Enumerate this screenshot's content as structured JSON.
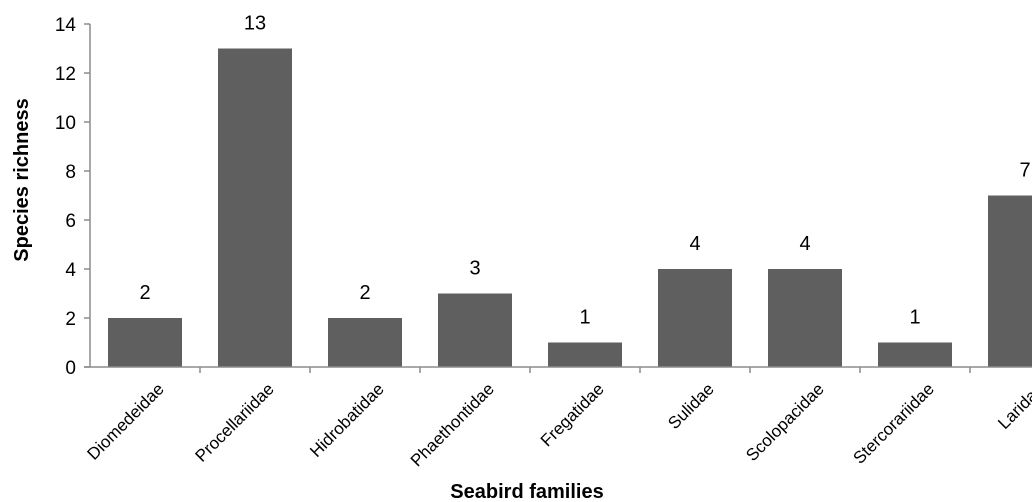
{
  "chart_data": {
    "type": "bar",
    "title": "",
    "xlabel": "Seabird families",
    "ylabel": "Species richness",
    "categories": [
      "Diomedeidae",
      "Procellariidae",
      "Hidrobatidae",
      "Phaethontidae",
      "Fregatidae",
      "Sulidae",
      "Scolopacidae",
      "Stercorariidae",
      "Laridae"
    ],
    "values": [
      2,
      13,
      2,
      3,
      1,
      4,
      4,
      1,
      7
    ],
    "ylim": [
      0,
      14
    ],
    "yticks": [
      0,
      2,
      4,
      6,
      8,
      10,
      12,
      14
    ],
    "grid": false,
    "legend": "none",
    "colors": {
      "bar": "#5f5f5f",
      "axis": "#8c8c8c",
      "text": "#000000"
    }
  }
}
